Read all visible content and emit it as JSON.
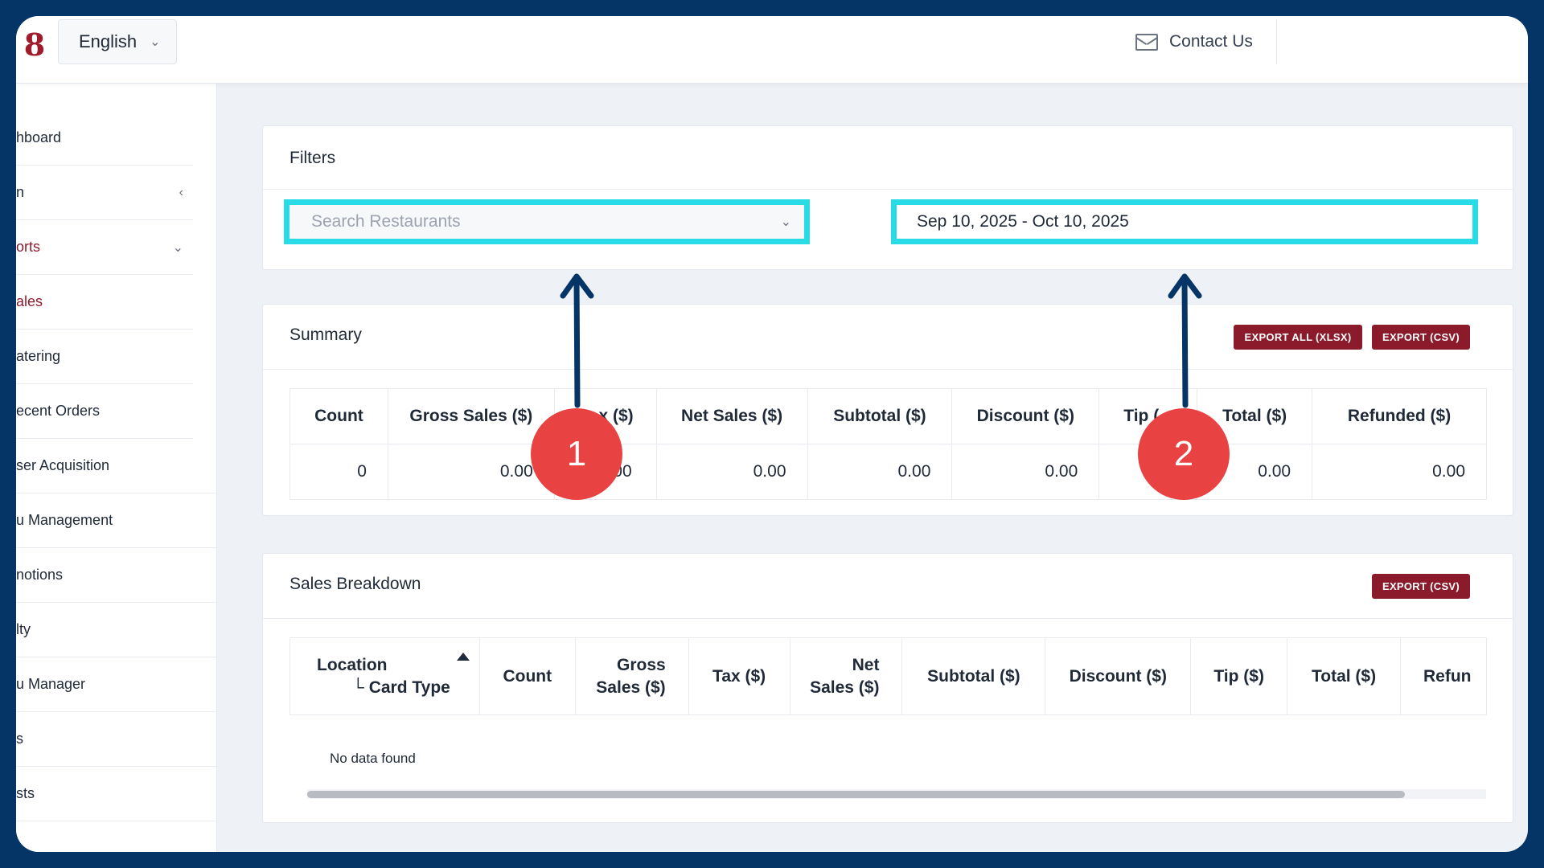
{
  "header": {
    "logo_glyph": "8",
    "language": "English",
    "contact_label": "Contact Us"
  },
  "sidebar": {
    "items": [
      {
        "label": "hboard",
        "active": false
      },
      {
        "label": "n",
        "active": false
      },
      {
        "label": "orts",
        "active": false
      },
      {
        "label": "ales",
        "active": true
      },
      {
        "label": "atering",
        "active": false
      },
      {
        "label": "ecent Orders",
        "active": false
      },
      {
        "label": "ser Acquisition",
        "active": false
      },
      {
        "label": "u Management",
        "active": false
      },
      {
        "label": "notions",
        "active": false
      },
      {
        "label": "lty",
        "active": false
      },
      {
        "label": "u Manager",
        "active": false
      },
      {
        "label": "s",
        "active": false
      },
      {
        "label": "sts",
        "active": false
      }
    ]
  },
  "filters": {
    "title": "Filters",
    "search_placeholder": "Search Restaurants",
    "date_range": "Sep 10, 2025 - Oct 10, 2025"
  },
  "summary": {
    "title": "Summary",
    "export_all_label": "EXPORT ALL (XLSX)",
    "export_csv_label": "EXPORT (CSV)",
    "columns": [
      "Count",
      "Gross Sales ($)",
      "x ($)",
      "Net Sales ($)",
      "Subtotal ($)",
      "Discount ($)",
      "Tip (",
      "Total ($)",
      "Refunded ($)"
    ],
    "row": [
      "0",
      "0.00",
      "00",
      "0.00",
      "0.00",
      "0.00",
      "",
      "0.00",
      "0.00"
    ]
  },
  "breakdown": {
    "title": "Sales Breakdown",
    "export_csv_label": "EXPORT (CSV)",
    "location_header": "Location",
    "card_type_header": "└ Card Type",
    "columns": [
      "Count",
      "Gross",
      "Sales ($)",
      "Tax ($)",
      "Net",
      "Sales ($)",
      "Subtotal ($)",
      "Discount ($)",
      "Tip ($)",
      "Total ($)",
      "Refun"
    ],
    "empty_message": "No data found"
  },
  "annotations": {
    "badge_1": "1",
    "badge_2": "2",
    "arrow_color": "#053566",
    "badge_color": "#e84242",
    "highlight_color": "#29dbe6"
  }
}
